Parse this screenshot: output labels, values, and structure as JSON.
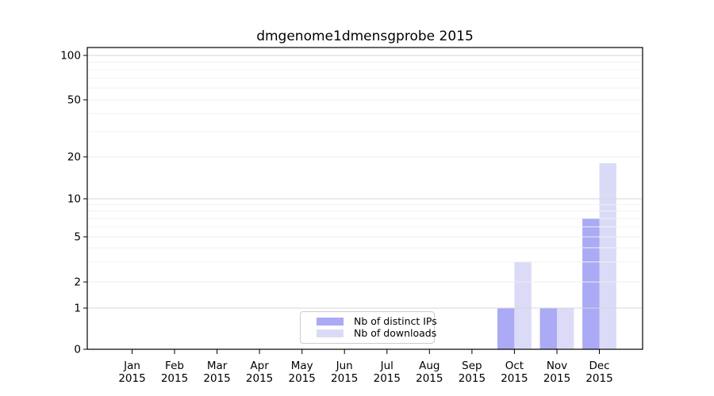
{
  "chart_data": {
    "type": "bar",
    "title": "dmgenome1dmensgprobe 2015",
    "categories": [
      "Jan",
      "Feb",
      "Mar",
      "Apr",
      "May",
      "Jun",
      "Jul",
      "Aug",
      "Sep",
      "Oct",
      "Nov",
      "Dec"
    ],
    "x_year_label": "2015",
    "yticks": [
      0,
      1,
      2,
      5,
      10,
      20,
      50,
      100
    ],
    "ylim": [
      0,
      113
    ],
    "y_scale": "log-like with linear 0-1 segment",
    "grid": "horizontal, drawn over bars",
    "legend_position": "bottom center inside plot",
    "series": [
      {
        "name": "Nb of distinct IPs",
        "color": "#aaaaf5",
        "values": [
          0,
          0,
          0,
          0,
          0,
          0,
          0,
          0,
          0,
          1,
          1,
          7
        ]
      },
      {
        "name": "Nb of downloads",
        "color": "#dbdbf8",
        "values": [
          0,
          0,
          0,
          0,
          0,
          0,
          0,
          0,
          0,
          3,
          1,
          18
        ]
      }
    ]
  }
}
